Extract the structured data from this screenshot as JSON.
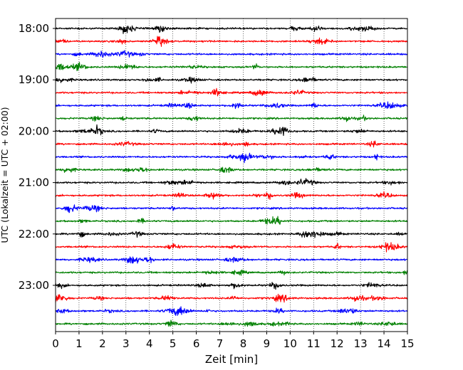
{
  "chart_data": {
    "type": "line",
    "title": "",
    "xlabel": "Zeit  [min]",
    "ylabel": "UTC (Lokalzeit = UTC + 02:00)",
    "xlim": [
      0,
      15
    ],
    "x_ticks": [
      "0",
      "1",
      "2",
      "3",
      "4",
      "5",
      "6",
      "7",
      "8",
      "9",
      "10",
      "11",
      "12",
      "13",
      "14",
      "15"
    ],
    "y_tick_labels": [
      "18:00",
      "19:00",
      "20:00",
      "21:00",
      "22:00",
      "23:00"
    ],
    "grid": "vertical dotted",
    "trace_interval_min": 15,
    "rows": [
      {
        "time": "18:00",
        "color": "#000000"
      },
      {
        "time": "18:15",
        "color": "#ff0000"
      },
      {
        "time": "18:30",
        "color": "#0000ff"
      },
      {
        "time": "18:45",
        "color": "#008000"
      },
      {
        "time": "19:00",
        "color": "#000000"
      },
      {
        "time": "19:15",
        "color": "#ff0000"
      },
      {
        "time": "19:30",
        "color": "#0000ff"
      },
      {
        "time": "19:45",
        "color": "#008000"
      },
      {
        "time": "20:00",
        "color": "#000000"
      },
      {
        "time": "20:15",
        "color": "#ff0000"
      },
      {
        "time": "20:30",
        "color": "#0000ff"
      },
      {
        "time": "20:45",
        "color": "#008000"
      },
      {
        "time": "21:00",
        "color": "#000000"
      },
      {
        "time": "21:15",
        "color": "#ff0000"
      },
      {
        "time": "21:30",
        "color": "#0000ff"
      },
      {
        "time": "21:45",
        "color": "#008000"
      },
      {
        "time": "22:00",
        "color": "#000000"
      },
      {
        "time": "22:15",
        "color": "#ff0000"
      },
      {
        "time": "22:30",
        "color": "#0000ff"
      },
      {
        "time": "22:45",
        "color": "#008000"
      },
      {
        "time": "23:00",
        "color": "#000000"
      },
      {
        "time": "23:15",
        "color": "#ff0000"
      },
      {
        "time": "23:30",
        "color": "#0000ff"
      },
      {
        "time": "23:45",
        "color": "#008000"
      }
    ]
  }
}
